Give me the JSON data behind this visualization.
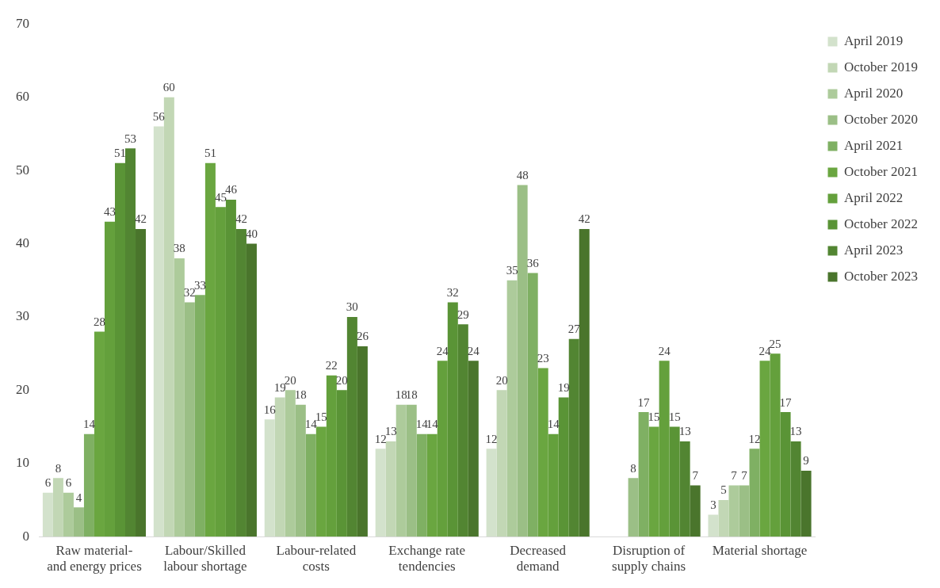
{
  "chart_data": {
    "type": "bar",
    "categories": [
      "Raw material- and energy prices",
      "Labour/Skilled labour shortage",
      "Labour-related costs",
      "Exchange rate tendencies",
      "Decreased demand",
      "Disruption of supply chains",
      "Material shortage"
    ],
    "series": [
      {
        "name": "April 2019",
        "color": "#d3e2cc",
        "values": [
          6,
          56,
          16,
          12,
          12,
          null,
          3
        ]
      },
      {
        "name": "October 2019",
        "color": "#c2d7b5",
        "values": [
          8,
          60,
          19,
          13,
          20,
          null,
          5
        ]
      },
      {
        "name": "April 2020",
        "color": "#adcb9b",
        "values": [
          6,
          38,
          20,
          18,
          35,
          null,
          7
        ]
      },
      {
        "name": "October 2020",
        "color": "#9bbf86",
        "values": [
          4,
          32,
          18,
          18,
          48,
          8,
          7
        ]
      },
      {
        "name": "April 2021",
        "color": "#7fb063",
        "values": [
          14,
          33,
          14,
          14,
          36,
          17,
          12
        ]
      },
      {
        "name": "October 2021",
        "color": "#6aa640",
        "values": [
          28,
          51,
          15,
          14,
          23,
          15,
          24
        ]
      },
      {
        "name": "April 2022",
        "color": "#64a03c",
        "values": [
          43,
          45,
          22,
          24,
          14,
          24,
          25
        ]
      },
      {
        "name": "October 2022",
        "color": "#5a9436",
        "values": [
          51,
          46,
          20,
          32,
          19,
          15,
          17
        ]
      },
      {
        "name": "April 2023",
        "color": "#528532",
        "values": [
          53,
          42,
          30,
          29,
          27,
          13,
          13
        ]
      },
      {
        "name": "October 2023",
        "color": "#4a752c",
        "values": [
          42,
          40,
          26,
          24,
          42,
          7,
          9
        ]
      }
    ],
    "ylim": [
      0,
      70
    ],
    "yticks": [
      0,
      10,
      20,
      30,
      40,
      50,
      60,
      70
    ],
    "grid": false,
    "legend": "right",
    "data_labels": true
  }
}
